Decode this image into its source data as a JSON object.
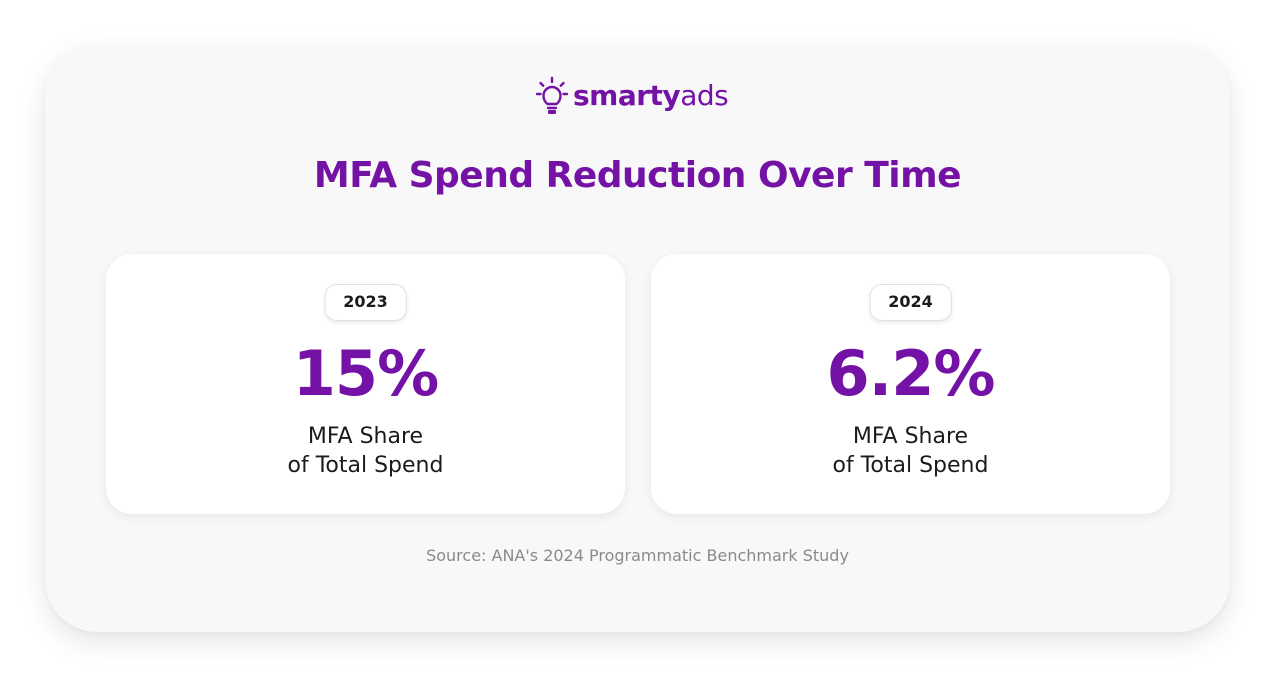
{
  "brand": {
    "name_bold": "smarty",
    "name_regular": "ads",
    "icon": "lightbulb-icon",
    "color": "#7512a6"
  },
  "title": "MFA Spend Reduction Over Time",
  "stats": [
    {
      "year": "2023",
      "value": "15%",
      "caption_line1": "MFA Share",
      "caption_line2": "of Total Spend"
    },
    {
      "year": "2024",
      "value": "6.2%",
      "caption_line1": "MFA Share",
      "caption_line2": "of Total Spend"
    }
  ],
  "source": "Source: ANA's 2024 Programmatic Benchmark Study",
  "colors": {
    "accent": "#7512a6",
    "text": "#1b1b1b",
    "muted": "#8a8a8a",
    "card_background": "#f8f8f8"
  }
}
